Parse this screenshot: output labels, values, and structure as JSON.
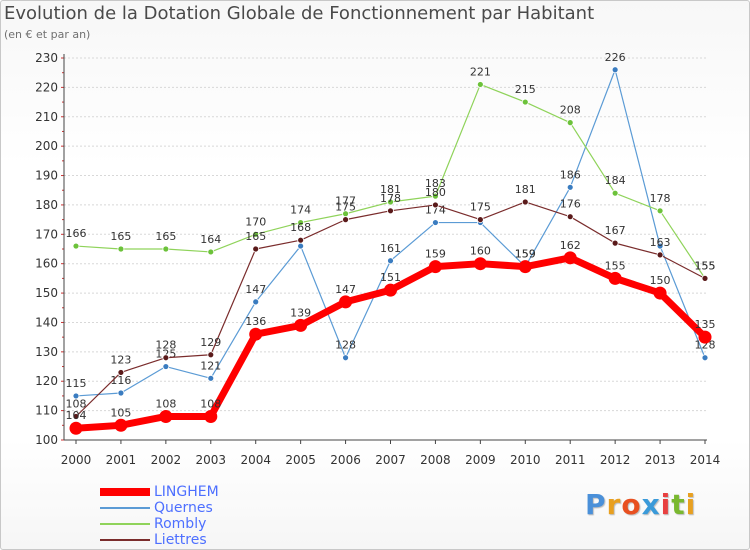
{
  "title": "Evolution de la Dotation Globale de Fonctionnement par Habitant",
  "subtitle": "(en € et par an)",
  "logo": {
    "letters": [
      "P",
      "r",
      "o",
      "x",
      "i",
      "t",
      "i"
    ],
    "colors": [
      "#4a90d9",
      "#e8a020",
      "#e85020",
      "#3a9ad9",
      "#e84040",
      "#7ab830",
      "#e8a020"
    ]
  },
  "chart_data": {
    "type": "line",
    "title": "Evolution de la Dotation Globale de Fonctionnement par Habitant",
    "xlabel": "",
    "ylabel": "(en € et par an)",
    "x": [
      "2000",
      "2001",
      "2002",
      "2003",
      "2004",
      "2005",
      "2006",
      "2007",
      "2008",
      "2009",
      "2010",
      "2011",
      "2012",
      "2013",
      "2014"
    ],
    "ylim": [
      100,
      230
    ],
    "yticks": [
      100,
      110,
      120,
      130,
      140,
      150,
      160,
      170,
      180,
      190,
      200,
      210,
      220,
      230
    ],
    "series": [
      {
        "name": "Quernes",
        "color": "#5b9bd5",
        "marker": "#3a7cc0",
        "width": 1.2,
        "values": [
          115,
          116,
          125,
          121,
          147,
          166,
          128,
          161,
          174,
          174,
          159,
          186,
          226,
          166,
          128
        ],
        "labels": [
          "115",
          "116",
          "125",
          "121",
          "147",
          "",
          "128",
          "161",
          "174",
          "",
          "159",
          "186",
          "226",
          "",
          "128"
        ]
      },
      {
        "name": "Rombly",
        "color": "#8fd35a",
        "marker": "#6cc23a",
        "width": 1.2,
        "values": [
          166,
          165,
          165,
          164,
          170,
          174,
          177,
          181,
          183,
          221,
          215,
          208,
          184,
          178,
          155
        ],
        "labels": [
          "166",
          "165",
          "165",
          "164",
          "170",
          "174",
          "177",
          "181",
          "183",
          "221",
          "215",
          "208",
          "184",
          "178",
          "155"
        ]
      },
      {
        "name": "Liettres",
        "color": "#7a2c2c",
        "marker": "#5a1a1a",
        "width": 1.2,
        "values": [
          108,
          123,
          128,
          129,
          165,
          168,
          175,
          178,
          180,
          175,
          181,
          176,
          167,
          163,
          155
        ],
        "labels": [
          "108",
          "123",
          "128",
          "129",
          "165",
          "168",
          "175",
          "178",
          "180",
          "175",
          "181",
          "176",
          "167",
          "163",
          "155"
        ]
      },
      {
        "name": "LINGHEM",
        "color": "#ff0000",
        "marker": "#ff0000",
        "width": 7,
        "values": [
          104,
          105,
          108,
          108,
          136,
          139,
          147,
          151,
          159,
          160,
          159,
          162,
          155,
          150,
          135
        ],
        "labels": [
          "104",
          "105",
          "108",
          "108",
          "136",
          "139",
          "147",
          "151",
          "159",
          "160",
          "159",
          "162",
          "155",
          "150",
          "135"
        ]
      }
    ],
    "legend_order": [
      "LINGHEM",
      "Quernes",
      "Rombly",
      "Liettres"
    ],
    "legend_position": "bottom-left"
  },
  "legend": [
    {
      "name": "LINGHEM",
      "color": "#ff0000",
      "text_color": "#4d6fff"
    },
    {
      "name": "Quernes",
      "color": "#5b9bd5",
      "text_color": "#4d6fff"
    },
    {
      "name": "Rombly",
      "color": "#8fd35a",
      "text_color": "#4d6fff"
    },
    {
      "name": "Liettres",
      "color": "#7a2c2c",
      "text_color": "#4d6fff"
    }
  ]
}
